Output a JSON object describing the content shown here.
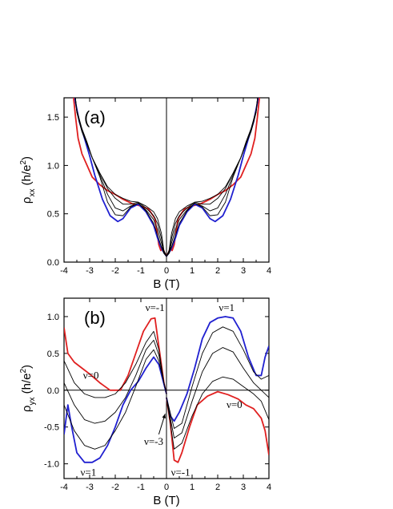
{
  "chart_data": [
    {
      "type": "line",
      "panel_label": "(a)",
      "xlabel": "B (T)",
      "ylabel_main": "ρ",
      "ylabel_sub": "xx",
      "ylabel_unit_pre": " (h/e",
      "ylabel_unit_sup": "2",
      "ylabel_unit_post": ")",
      "xlim": [
        -4,
        4
      ],
      "ylim": [
        0,
        1.7
      ],
      "xticks": [
        -4,
        -3,
        -2,
        -1,
        0,
        1,
        2,
        3,
        4
      ],
      "xtick_labels": [
        "-4",
        "-3",
        "-2",
        "-1",
        "0",
        "1",
        "2",
        "3",
        "4"
      ],
      "yticks": [
        0.0,
        0.5,
        1.0,
        1.5
      ],
      "ytick_labels": [
        "0.0",
        "0.5",
        "1.0",
        "1.5"
      ],
      "colors": {
        "red": "#e02020",
        "blue": "#2020d0",
        "black": "#000000"
      },
      "series": [
        {
          "color": "red",
          "x": [
            0,
            0.08,
            0.15,
            0.22,
            0.3,
            0.45,
            0.7,
            1.0,
            1.3,
            1.7,
            2.0,
            2.3,
            2.6,
            2.9,
            3.1,
            3.3,
            3.45,
            3.55,
            3.62,
            3.7
          ],
          "y": [
            0.06,
            0.1,
            0.15,
            0.12,
            0.18,
            0.45,
            0.55,
            0.58,
            0.6,
            0.65,
            0.7,
            0.74,
            0.8,
            0.88,
            1.0,
            1.12,
            1.28,
            1.5,
            1.68,
            1.85
          ]
        },
        {
          "color": "blue",
          "x": [
            0,
            0.08,
            0.15,
            0.22,
            0.35,
            0.5,
            0.8,
            1.1,
            1.4,
            1.7,
            1.9,
            2.2,
            2.5,
            2.8,
            3.0,
            3.2,
            3.4,
            3.55,
            3.65
          ],
          "y": [
            0.06,
            0.09,
            0.12,
            0.16,
            0.25,
            0.38,
            0.52,
            0.6,
            0.56,
            0.45,
            0.42,
            0.48,
            0.65,
            0.9,
            1.1,
            1.28,
            1.45,
            1.65,
            1.85
          ]
        },
        {
          "color": "black",
          "x": [
            0,
            0.1,
            0.2,
            0.35,
            0.5,
            0.8,
            1.1,
            1.4,
            1.7,
            2.0,
            2.3,
            2.6,
            2.9,
            3.1,
            3.3,
            3.5,
            3.62
          ],
          "y": [
            0.06,
            0.12,
            0.3,
            0.45,
            0.52,
            0.58,
            0.62,
            0.63,
            0.66,
            0.7,
            0.78,
            0.92,
            1.08,
            1.22,
            1.35,
            1.55,
            1.85
          ]
        },
        {
          "color": "black",
          "x": [
            0,
            0.1,
            0.2,
            0.35,
            0.5,
            0.8,
            1.1,
            1.4,
            1.7,
            2.0,
            2.3,
            2.6,
            2.9,
            3.1,
            3.3,
            3.5,
            3.62
          ],
          "y": [
            0.06,
            0.11,
            0.25,
            0.4,
            0.48,
            0.56,
            0.62,
            0.6,
            0.6,
            0.66,
            0.76,
            0.92,
            1.08,
            1.22,
            1.35,
            1.55,
            1.85
          ]
        },
        {
          "color": "black",
          "x": [
            0,
            0.1,
            0.2,
            0.35,
            0.5,
            0.8,
            1.1,
            1.4,
            1.7,
            2.0,
            2.3,
            2.6,
            2.9,
            3.1,
            3.3,
            3.5,
            3.62
          ],
          "y": [
            0.06,
            0.1,
            0.2,
            0.34,
            0.44,
            0.54,
            0.61,
            0.58,
            0.53,
            0.56,
            0.7,
            0.9,
            1.08,
            1.22,
            1.36,
            1.56,
            1.85
          ]
        },
        {
          "color": "black",
          "x": [
            0,
            0.1,
            0.2,
            0.35,
            0.5,
            0.8,
            1.1,
            1.4,
            1.7,
            2.0,
            2.3,
            2.6,
            2.9,
            3.1,
            3.3,
            3.5,
            3.62
          ],
          "y": [
            0.06,
            0.09,
            0.16,
            0.28,
            0.4,
            0.53,
            0.61,
            0.57,
            0.48,
            0.49,
            0.62,
            0.88,
            1.08,
            1.24,
            1.38,
            1.57,
            1.85
          ]
        }
      ]
    },
    {
      "type": "line",
      "panel_label": "(b)",
      "xlabel": "B (T)",
      "ylabel_main": "ρ",
      "ylabel_sub": "yx",
      "ylabel_unit_pre": " (h/e",
      "ylabel_unit_sup": "2",
      "ylabel_unit_post": ")",
      "xlim": [
        -4,
        4
      ],
      "ylim": [
        -1.2,
        1.25
      ],
      "xticks": [
        -4,
        -3,
        -2,
        -1,
        0,
        1,
        2,
        3,
        4
      ],
      "xtick_labels": [
        "-4",
        "-3",
        "-2",
        "-1",
        "0",
        "1",
        "2",
        "3",
        "4"
      ],
      "yticks": [
        -1.0,
        -0.5,
        0.0,
        0.5,
        1.0
      ],
      "ytick_labels": [
        "-1.0",
        "-0.5",
        "0.0",
        "0.5",
        "1.0"
      ],
      "annotations": [
        {
          "text": "ν=-1",
          "x": -0.45,
          "y": 1.12
        },
        {
          "text": "ν=1",
          "x": 2.35,
          "y": 1.12
        },
        {
          "text": "ν=0",
          "x": -2.95,
          "y": 0.2
        },
        {
          "text": "ν=0",
          "x": 2.65,
          "y": -0.2
        },
        {
          "text": "ν=-3",
          "x": -0.5,
          "y": -0.7
        },
        {
          "text": "ν=1",
          "x": -3.05,
          "y": -1.12
        },
        {
          "text": "ν=-1",
          "x": 0.55,
          "y": -1.12
        }
      ],
      "arrow": {
        "from": [
          -0.3,
          -0.6
        ],
        "to": [
          -0.05,
          -0.32
        ]
      },
      "colors": {
        "red": "#e02020",
        "blue": "#2020d0",
        "black": "#000000"
      },
      "series": [
        {
          "color": "red",
          "x": [
            -4,
            -3.85,
            -3.6,
            -3.3,
            -3.0,
            -2.6,
            -2.2,
            -1.8,
            -1.5,
            -1.2,
            -0.9,
            -0.6,
            -0.45,
            -0.3,
            -0.1,
            0.0
          ],
          "y": [
            0.85,
            0.5,
            0.38,
            0.3,
            0.22,
            0.1,
            0.0,
            0.0,
            0.2,
            0.5,
            0.8,
            0.97,
            0.98,
            0.6,
            0.1,
            -0.05
          ]
        },
        {
          "color": "red",
          "x": [
            0.0,
            0.15,
            0.3,
            0.45,
            0.6,
            0.9,
            1.2,
            1.6,
            2.0,
            2.4,
            2.8,
            3.1,
            3.4,
            3.7,
            3.85,
            4.0
          ],
          "y": [
            -0.1,
            -0.45,
            -0.95,
            -0.98,
            -0.85,
            -0.5,
            -0.2,
            -0.08,
            -0.02,
            -0.06,
            -0.12,
            -0.2,
            -0.25,
            -0.38,
            -0.55,
            -0.88
          ]
        },
        {
          "color": "blue",
          "x": [
            -4,
            -3.85,
            -3.7,
            -3.5,
            -3.2,
            -2.9,
            -2.6,
            -2.3,
            -2.0,
            -1.7,
            -1.4,
            -1.1,
            -0.8,
            -0.5,
            -0.3,
            -0.15,
            0.0
          ],
          "y": [
            -0.6,
            -0.2,
            -0.5,
            -0.85,
            -0.98,
            -0.98,
            -0.92,
            -0.75,
            -0.5,
            -0.2,
            0.0,
            0.12,
            0.3,
            0.45,
            0.35,
            0.15,
            -0.05
          ]
        },
        {
          "color": "blue",
          "x": [
            0.0,
            0.15,
            0.3,
            0.5,
            0.8,
            1.1,
            1.4,
            1.7,
            2.0,
            2.3,
            2.6,
            2.9,
            3.2,
            3.5,
            3.7,
            3.85,
            4.0
          ],
          "y": [
            -0.1,
            -0.35,
            -0.42,
            -0.3,
            -0.05,
            0.3,
            0.7,
            0.92,
            0.98,
            1.0,
            0.98,
            0.8,
            0.45,
            0.2,
            0.2,
            0.45,
            0.6
          ]
        },
        {
          "color": "black",
          "x": [
            -4,
            -3.6,
            -3.2,
            -2.8,
            -2.4,
            -2.0,
            -1.6,
            -1.2,
            -0.8,
            -0.5,
            -0.3,
            -0.1,
            0.0
          ],
          "y": [
            0.4,
            0.1,
            -0.05,
            -0.1,
            -0.1,
            -0.05,
            0.1,
            0.35,
            0.65,
            0.8,
            0.55,
            0.1,
            -0.05
          ]
        },
        {
          "color": "black",
          "x": [
            -4,
            -3.6,
            -3.2,
            -2.8,
            -2.4,
            -2.0,
            -1.6,
            -1.2,
            -0.8,
            -0.5,
            -0.3,
            -0.1,
            0.0
          ],
          "y": [
            0.1,
            -0.2,
            -0.4,
            -0.45,
            -0.42,
            -0.3,
            -0.1,
            0.2,
            0.55,
            0.68,
            0.48,
            0.1,
            -0.05
          ]
        },
        {
          "color": "black",
          "x": [
            -4,
            -3.6,
            -3.2,
            -2.8,
            -2.4,
            -2.0,
            -1.6,
            -1.2,
            -0.8,
            -0.5,
            -0.3,
            -0.1,
            0.0
          ],
          "y": [
            -0.2,
            -0.55,
            -0.75,
            -0.8,
            -0.75,
            -0.55,
            -0.3,
            0.05,
            0.42,
            0.55,
            0.4,
            0.1,
            -0.05
          ]
        },
        {
          "color": "black",
          "x": [
            0.0,
            0.3,
            0.6,
            1.0,
            1.4,
            1.8,
            2.2,
            2.6,
            3.0,
            3.4,
            3.7,
            4.0
          ],
          "y": [
            -0.1,
            -0.8,
            -0.72,
            -0.35,
            -0.05,
            0.12,
            0.18,
            0.15,
            0.05,
            -0.05,
            -0.15,
            -0.4
          ]
        },
        {
          "color": "black",
          "x": [
            0.0,
            0.3,
            0.6,
            1.0,
            1.4,
            1.8,
            2.2,
            2.6,
            3.0,
            3.4,
            3.7,
            4.0
          ],
          "y": [
            -0.1,
            -0.65,
            -0.58,
            -0.15,
            0.25,
            0.5,
            0.58,
            0.52,
            0.3,
            0.1,
            0.0,
            -0.1
          ]
        },
        {
          "color": "black",
          "x": [
            0.0,
            0.3,
            0.6,
            1.0,
            1.4,
            1.8,
            2.2,
            2.6,
            3.0,
            3.4,
            3.7,
            4.0
          ],
          "y": [
            -0.1,
            -0.52,
            -0.45,
            0.05,
            0.5,
            0.78,
            0.86,
            0.8,
            0.55,
            0.25,
            0.15,
            0.2
          ]
        }
      ]
    }
  ]
}
